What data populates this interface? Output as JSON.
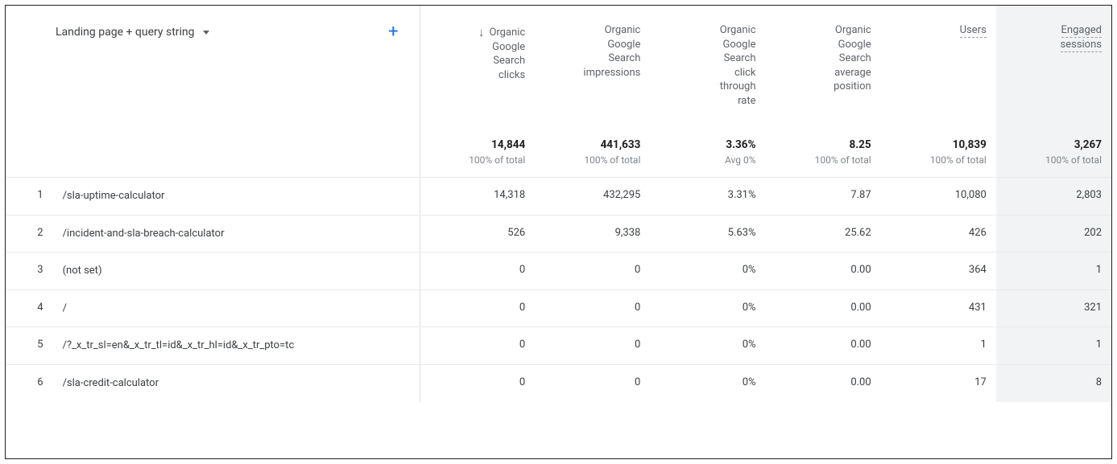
{
  "dimension": {
    "label": "Landing page + query string"
  },
  "columns": [
    {
      "label": "Organic Google Search clicks",
      "sorted_desc": true,
      "dotted": false
    },
    {
      "label": "Organic Google Search impressions",
      "sorted_desc": false,
      "dotted": false
    },
    {
      "label": "Organic Google Search click through rate",
      "sorted_desc": false,
      "dotted": false
    },
    {
      "label": "Organic Google Search average position",
      "sorted_desc": false,
      "dotted": false
    },
    {
      "label": "Users",
      "sorted_desc": false,
      "dotted": true
    },
    {
      "label": "Engaged sessions",
      "sorted_desc": false,
      "dotted": true
    }
  ],
  "summary": [
    {
      "value": "14,844",
      "sub": "100% of total"
    },
    {
      "value": "441,633",
      "sub": "100% of total"
    },
    {
      "value": "3.36%",
      "sub": "Avg 0%"
    },
    {
      "value": "8.25",
      "sub": "100% of total"
    },
    {
      "value": "10,839",
      "sub": "100% of total"
    },
    {
      "value": "3,267",
      "sub": "100% of total"
    }
  ],
  "rows": [
    {
      "idx": "1",
      "page": "/sla-uptime-calculator",
      "cells": [
        "14,318",
        "432,295",
        "3.31%",
        "7.87",
        "10,080",
        "2,803"
      ]
    },
    {
      "idx": "2",
      "page": "/incident-and-sla-breach-calculator",
      "cells": [
        "526",
        "9,338",
        "5.63%",
        "25.62",
        "426",
        "202"
      ]
    },
    {
      "idx": "3",
      "page": "(not set)",
      "cells": [
        "0",
        "0",
        "0%",
        "0.00",
        "364",
        "1"
      ]
    },
    {
      "idx": "4",
      "page": "/",
      "cells": [
        "0",
        "0",
        "0%",
        "0.00",
        "431",
        "321"
      ]
    },
    {
      "idx": "5",
      "page": "/?_x_tr_sl=en&_x_tr_tl=id&_x_tr_hl=id&_x_tr_pto=tc",
      "cells": [
        "0",
        "0",
        "0%",
        "0.00",
        "1",
        "1"
      ]
    },
    {
      "idx": "6",
      "page": "/sla-credit-calculator",
      "cells": [
        "0",
        "0",
        "0%",
        "0.00",
        "17",
        "8"
      ]
    }
  ]
}
